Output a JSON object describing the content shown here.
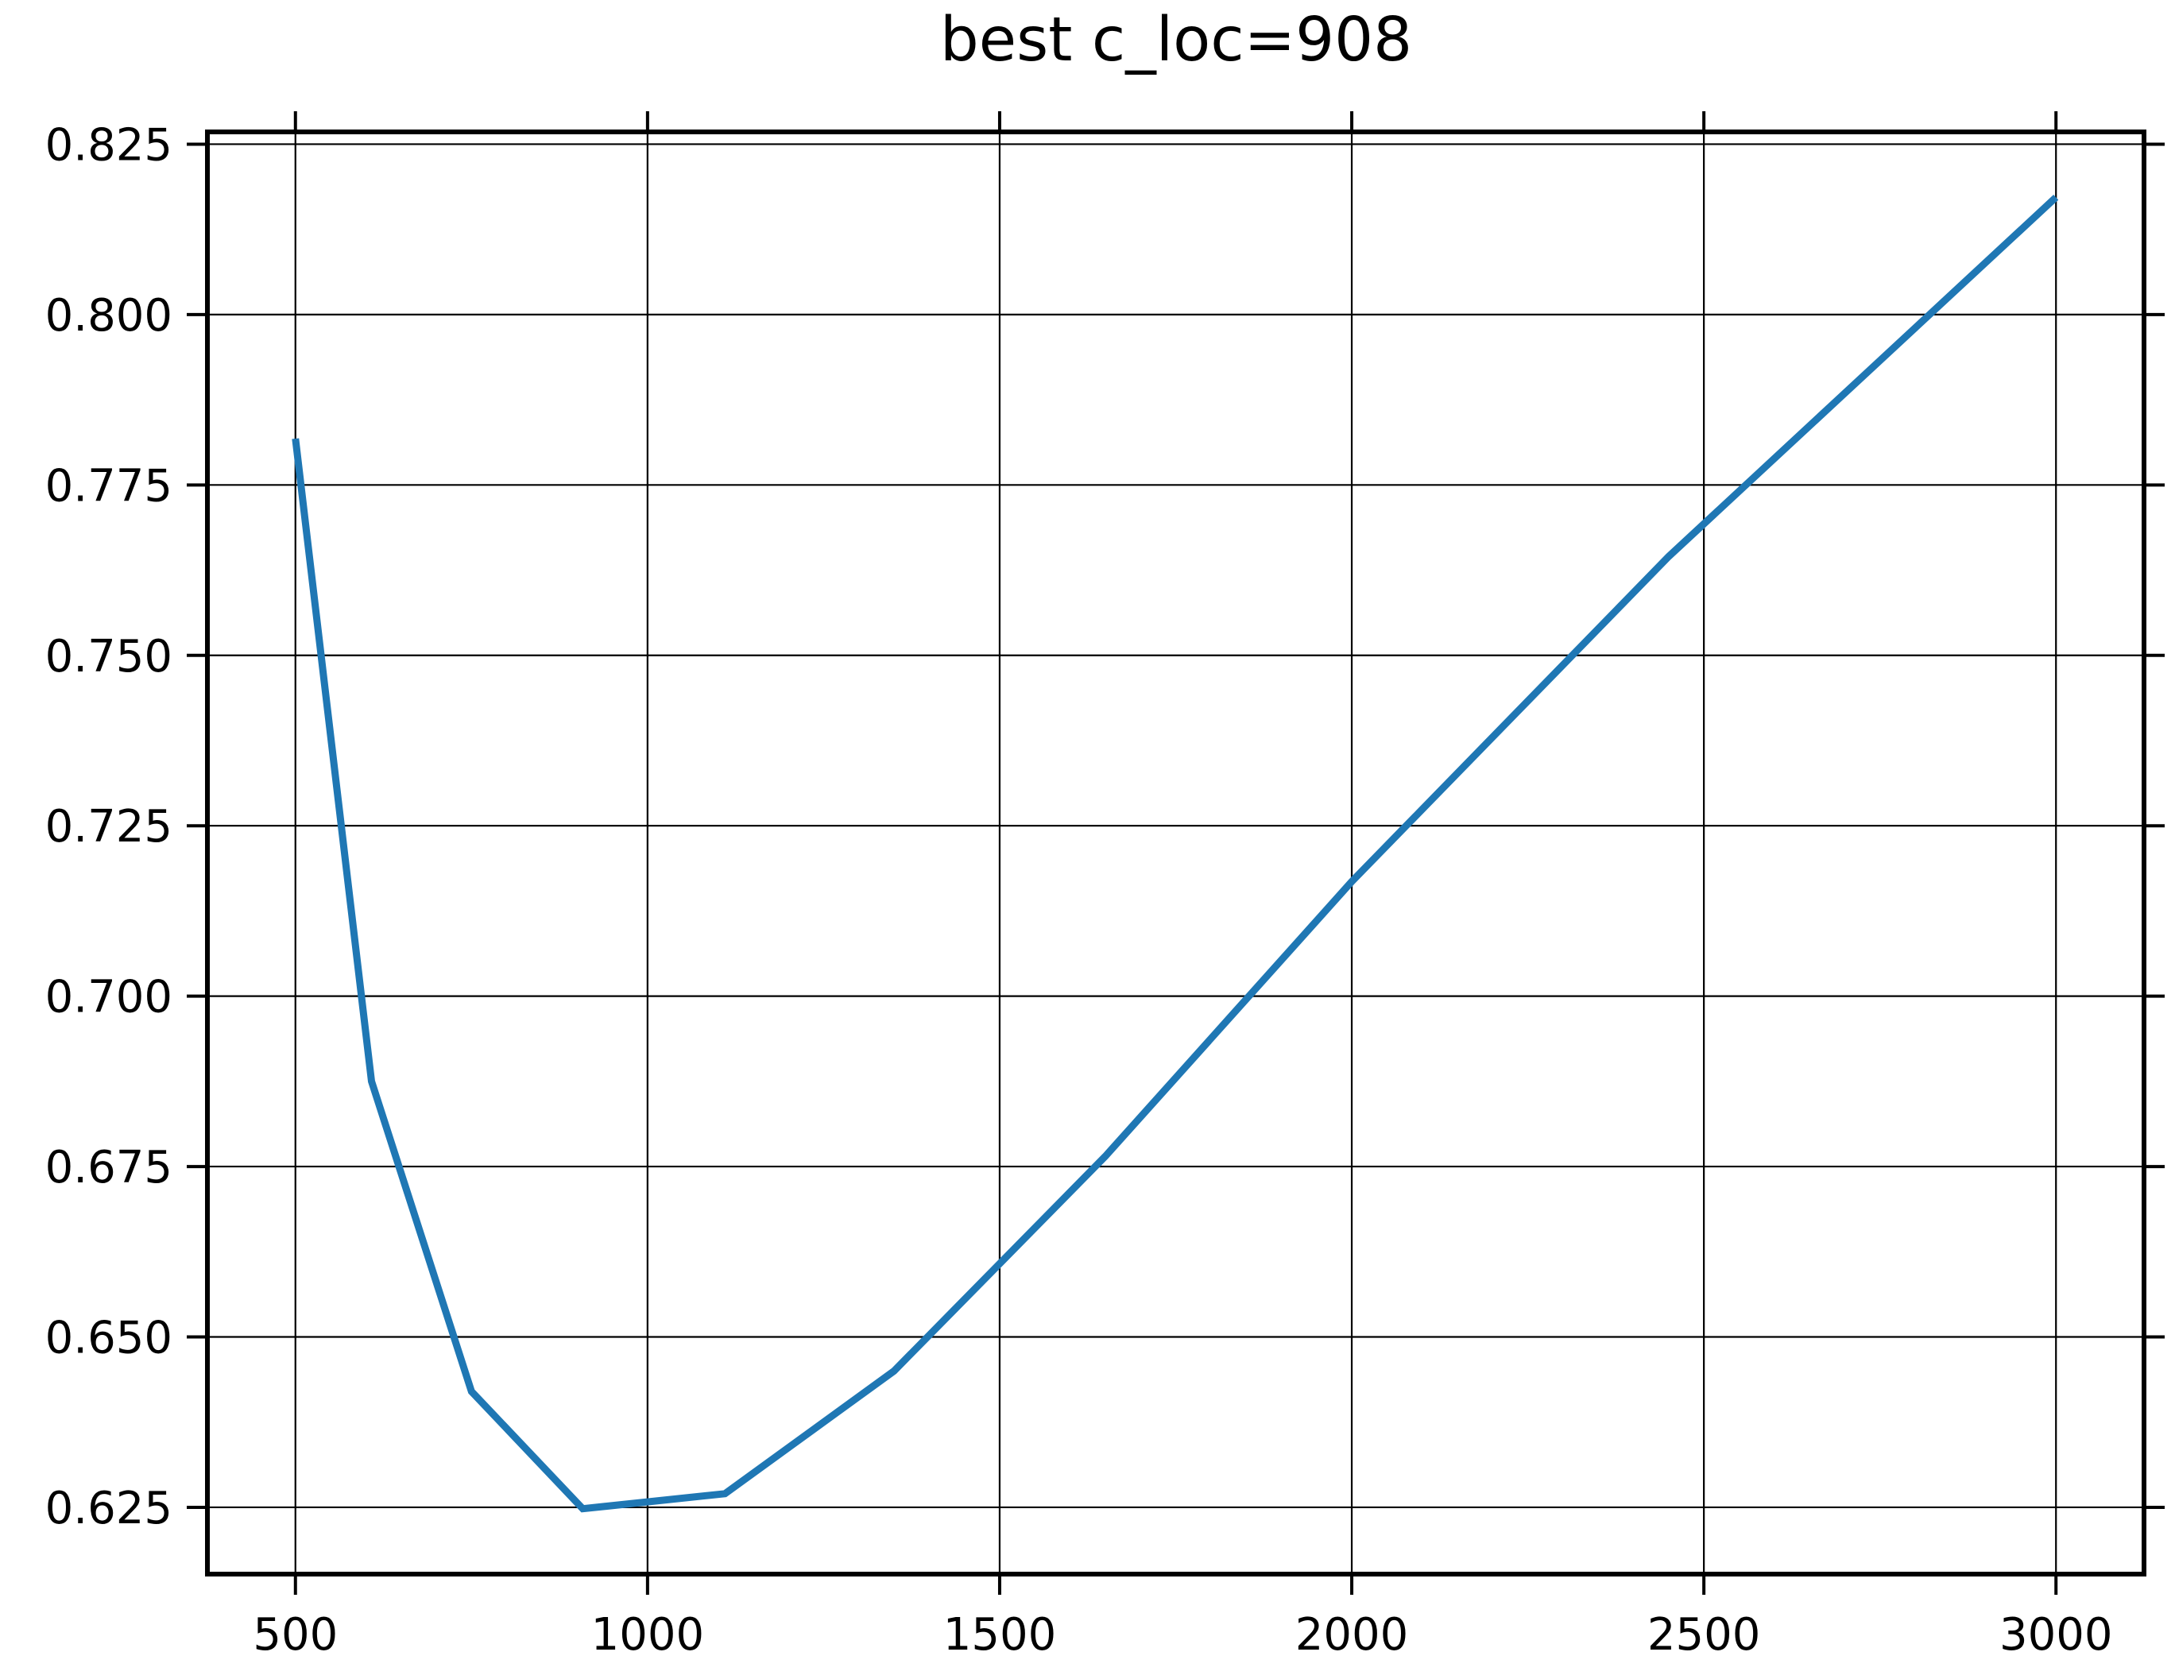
{
  "chart_data": {
    "type": "line",
    "title": "best c_loc=908",
    "xlabel": "",
    "ylabel": "",
    "xlim": [
      375,
      3125
    ],
    "ylim": [
      0.6152,
      0.8268
    ],
    "xticks": [
      500,
      1000,
      1500,
      2000,
      2500,
      3000
    ],
    "xtick_labels": [
      "500",
      "1000",
      "1500",
      "2000",
      "2500",
      "3000"
    ],
    "yticks": [
      0.625,
      0.65,
      0.675,
      0.7,
      0.725,
      0.75,
      0.775,
      0.8,
      0.825
    ],
    "ytick_labels": [
      "0.625",
      "0.650",
      "0.675",
      "0.700",
      "0.725",
      "0.750",
      "0.775",
      "0.800",
      "0.825"
    ],
    "grid": true,
    "series": [
      {
        "color": "#1f77b4",
        "x": [
          500,
          608,
          750,
          908,
          1110,
          1350,
          1650,
          2000,
          2450,
          3000
        ],
        "y": [
          0.7818,
          0.6875,
          0.642,
          0.6248,
          0.627,
          0.645,
          0.6765,
          0.7168,
          0.7645,
          0.8172
        ]
      }
    ]
  }
}
